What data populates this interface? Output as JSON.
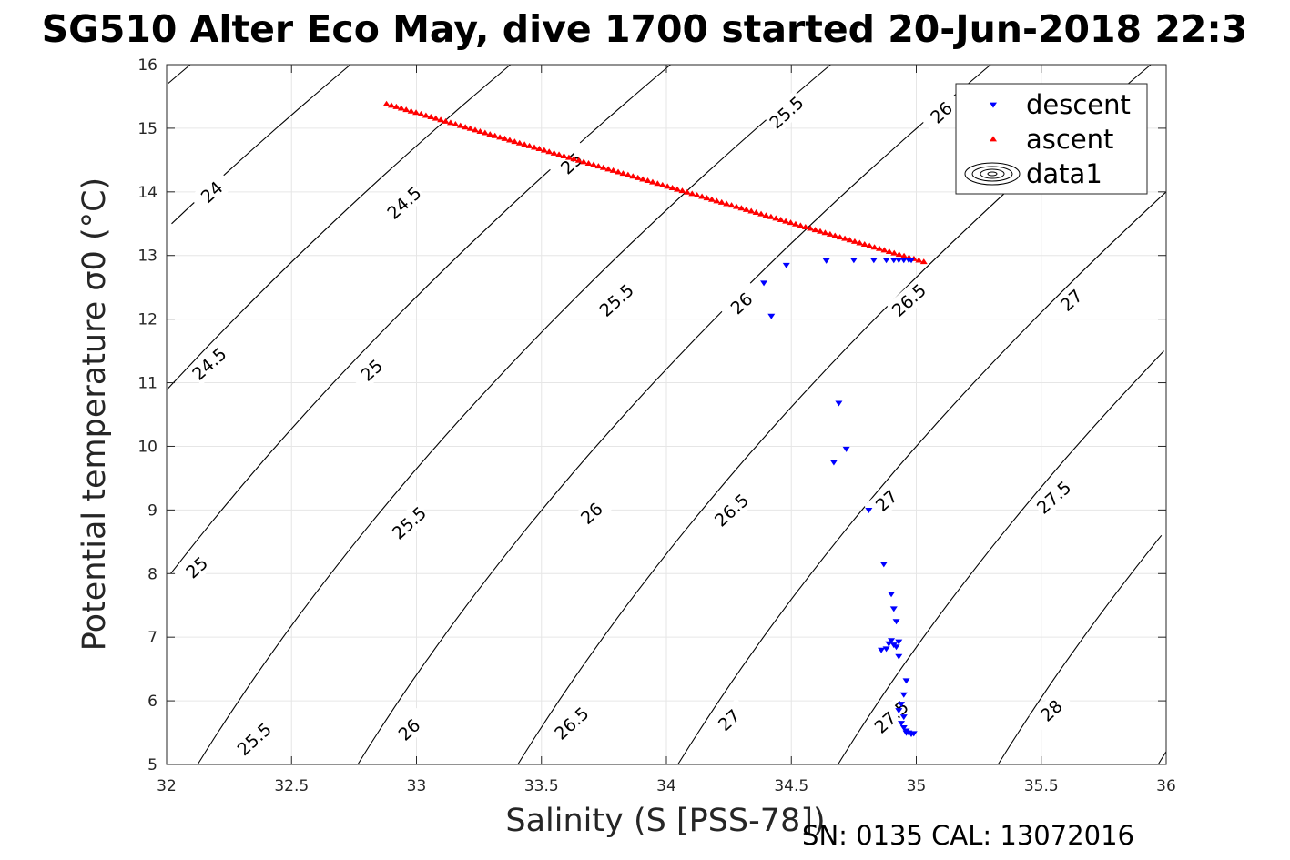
{
  "chart_data": {
    "type": "scatter",
    "title": "SG510 Alter Eco May, dive 1700 started 20-Jun-2018 22:3",
    "xlabel": "Salinity (S [PSS-78])",
    "ylabel": "Potential temperature σ0 (°C)",
    "xlim": [
      32,
      36
    ],
    "ylim": [
      5,
      16
    ],
    "xticks": [
      "32",
      "32.5",
      "33",
      "33.5",
      "34",
      "34.5",
      "35",
      "35.5",
      "36"
    ],
    "yticks": [
      "5",
      "6",
      "7",
      "8",
      "9",
      "10",
      "11",
      "12",
      "13",
      "14",
      "15",
      "16"
    ],
    "grid": true,
    "legend_position": "top-right",
    "series": [
      {
        "name": "descent",
        "marker": "triangle-down",
        "color": "#0000ff",
        "points": [
          [
            34.39,
            12.57
          ],
          [
            34.42,
            12.05
          ],
          [
            34.48,
            12.85
          ],
          [
            34.64,
            12.92
          ],
          [
            34.75,
            12.93
          ],
          [
            34.83,
            12.93
          ],
          [
            34.88,
            12.93
          ],
          [
            34.91,
            12.93
          ],
          [
            34.93,
            12.93
          ],
          [
            34.95,
            12.93
          ],
          [
            34.97,
            12.93
          ],
          [
            34.98,
            12.93
          ],
          [
            34.69,
            10.68
          ],
          [
            34.72,
            9.96
          ],
          [
            34.67,
            9.75
          ],
          [
            34.81,
            9.0
          ],
          [
            34.87,
            8.15
          ],
          [
            34.9,
            7.68
          ],
          [
            34.91,
            7.45
          ],
          [
            34.92,
            7.25
          ],
          [
            34.9,
            6.95
          ],
          [
            34.89,
            6.9
          ],
          [
            34.91,
            6.88
          ],
          [
            34.93,
            6.93
          ],
          [
            34.88,
            6.82
          ],
          [
            34.86,
            6.8
          ],
          [
            34.92,
            6.85
          ],
          [
            34.93,
            6.7
          ],
          [
            34.96,
            6.32
          ],
          [
            34.95,
            6.1
          ],
          [
            34.94,
            5.95
          ],
          [
            34.93,
            5.85
          ],
          [
            34.95,
            5.75
          ],
          [
            34.94,
            5.65
          ],
          [
            34.95,
            5.58
          ],
          [
            34.96,
            5.53
          ],
          [
            34.97,
            5.5
          ],
          [
            34.98,
            5.48
          ],
          [
            34.99,
            5.49
          ],
          [
            34.96,
            5.5
          ]
        ]
      },
      {
        "name": "ascent",
        "marker": "triangle-up",
        "color": "#ff0000",
        "line": {
          "x_start": 32.88,
          "y_start": 15.38,
          "x_end": 35.03,
          "y_end": 12.9,
          "count": 110
        }
      },
      {
        "name": "data1",
        "marker": "contour-icon",
        "color": "#000000"
      }
    ],
    "density_contours": [
      {
        "level": "24",
        "label_at": [
          32.18,
          14.0
        ]
      },
      {
        "level": "24.5",
        "label_at": [
          32.17,
          11.3
        ]
      },
      {
        "level": "24.5",
        "label_at": [
          32.95,
          13.83
        ]
      },
      {
        "level": "25",
        "label_at": [
          32.12,
          8.1
        ]
      },
      {
        "level": "25",
        "label_at": [
          32.82,
          11.2
        ]
      },
      {
        "level": "25",
        "label_at": [
          33.62,
          14.45
        ]
      },
      {
        "level": "25.5",
        "label_at": [
          32.35,
          5.4
        ]
      },
      {
        "level": "25.5",
        "label_at": [
          32.97,
          8.8
        ]
      },
      {
        "level": "25.5",
        "label_at": [
          33.8,
          12.3
        ]
      },
      {
        "level": "25.5",
        "label_at": [
          34.48,
          15.25
        ]
      },
      {
        "level": "26",
        "label_at": [
          32.97,
          5.55
        ]
      },
      {
        "level": "26",
        "label_at": [
          33.7,
          8.95
        ]
      },
      {
        "level": "26",
        "label_at": [
          34.3,
          12.25
        ]
      },
      {
        "level": "26",
        "label_at": [
          35.1,
          15.25
        ]
      },
      {
        "level": "26.5",
        "label_at": [
          33.62,
          5.65
        ]
      },
      {
        "level": "26.5",
        "label_at": [
          34.26,
          9.0
        ]
      },
      {
        "level": "26.5",
        "label_at": [
          34.97,
          12.3
        ]
      },
      {
        "level": "27",
        "label_at": [
          34.25,
          5.7
        ]
      },
      {
        "level": "27",
        "label_at": [
          34.88,
          9.15
        ]
      },
      {
        "level": "27",
        "label_at": [
          35.62,
          12.3
        ]
      },
      {
        "level": "27.5",
        "label_at": [
          34.9,
          5.75
        ]
      },
      {
        "level": "27.5",
        "label_at": [
          35.55,
          9.2
        ]
      },
      {
        "level": "28",
        "label_at": [
          35.54,
          5.85
        ]
      }
    ],
    "annotations": [
      "SN: 0135  CAL: 13072016"
    ]
  }
}
